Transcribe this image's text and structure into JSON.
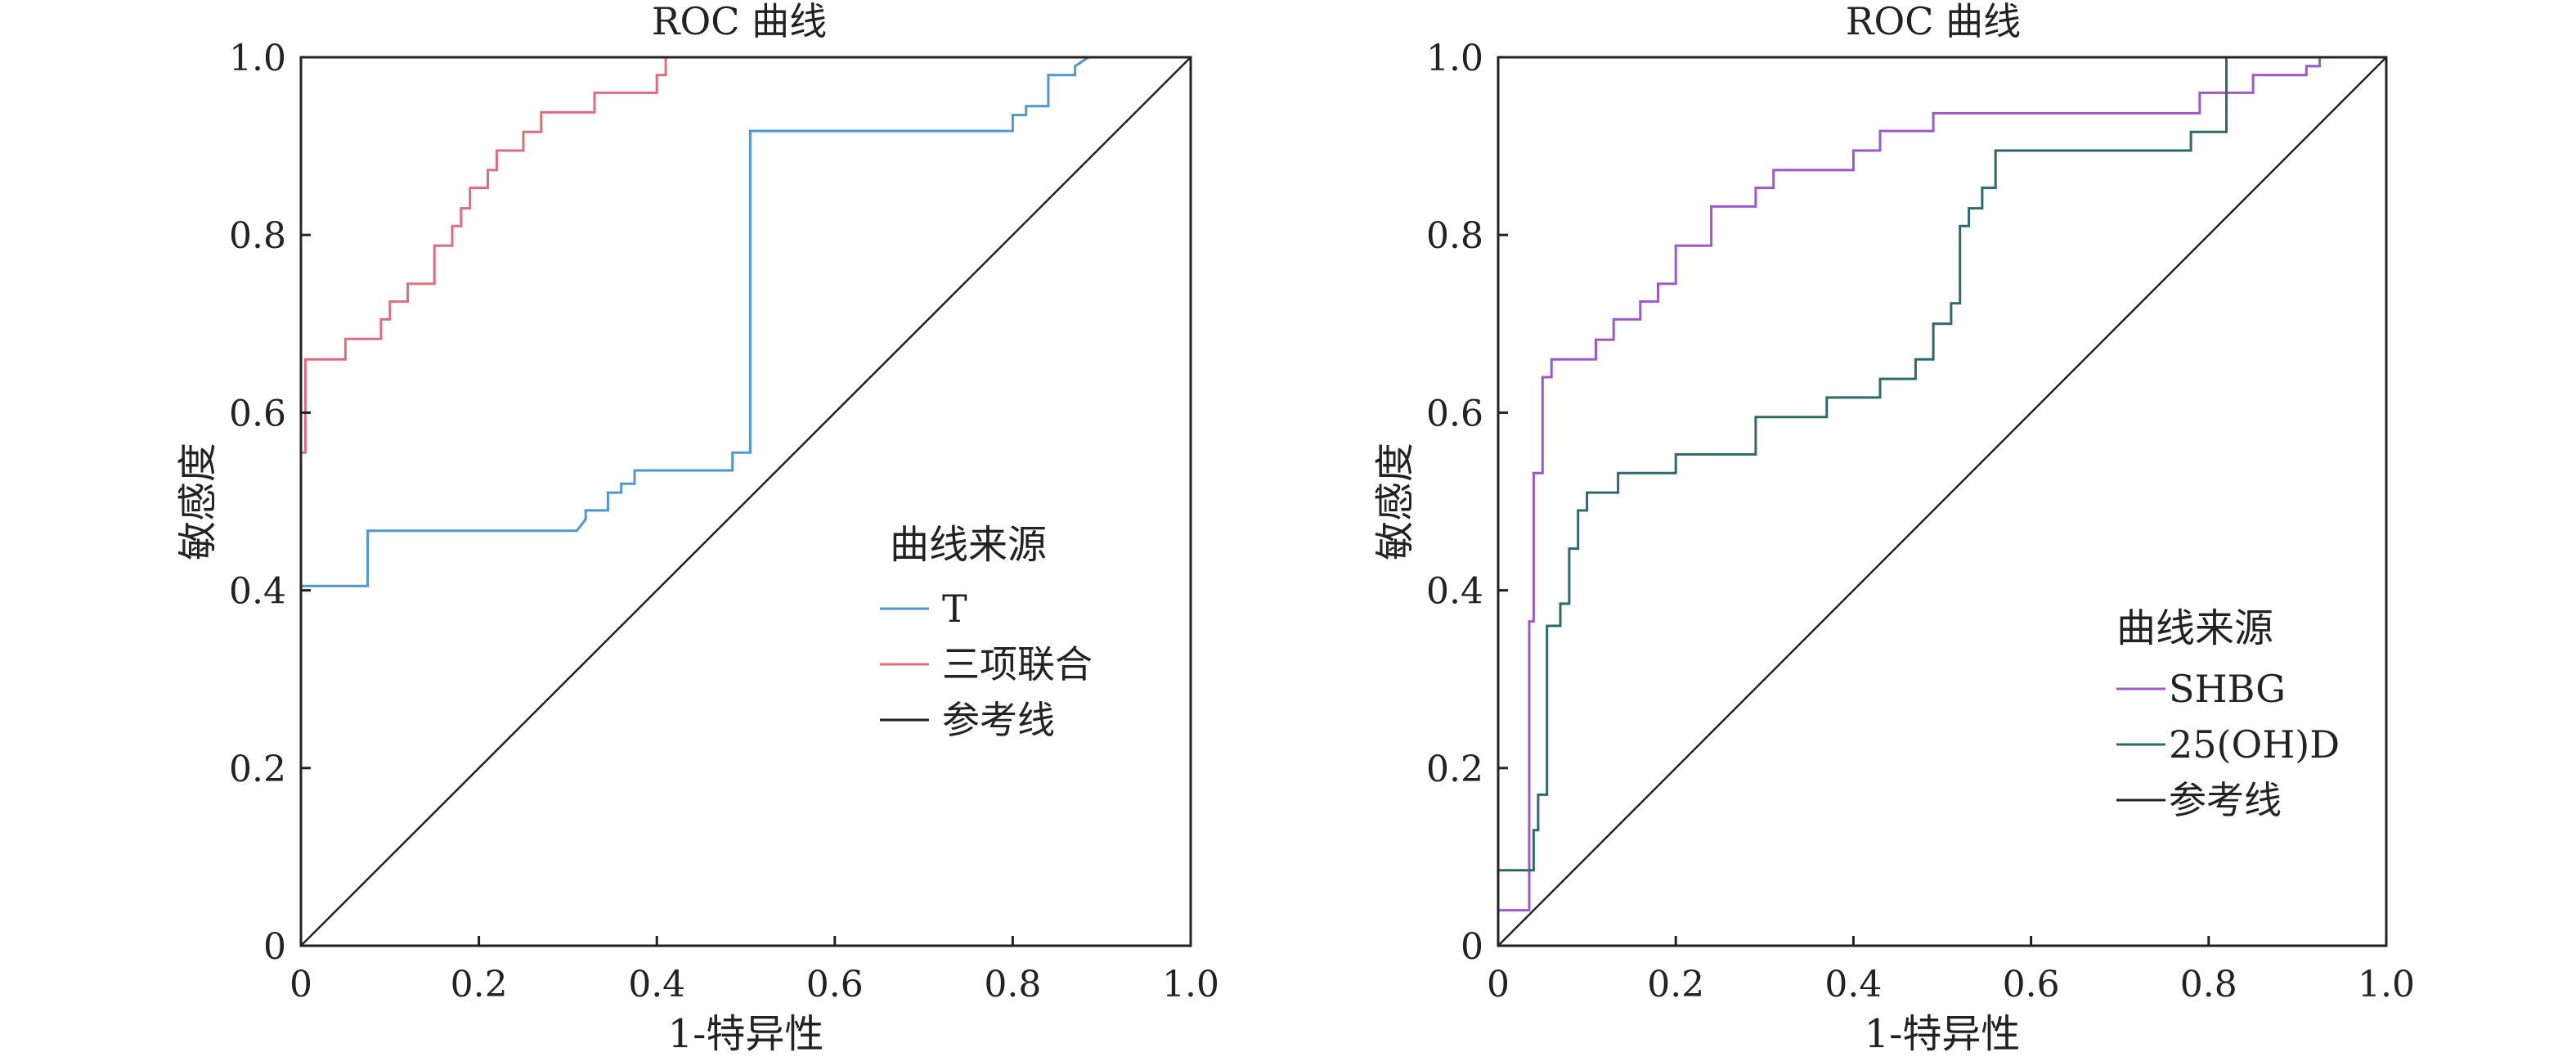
{
  "chart_data": [
    {
      "type": "line",
      "title": "ROC 曲线",
      "xlabel": "1-特异性",
      "ylabel": "敏感度",
      "xlim": [
        0,
        1
      ],
      "ylim": [
        0,
        1
      ],
      "xticks": [
        "0",
        "0.2",
        "0.4",
        "0.6",
        "0.8",
        "1.0"
      ],
      "yticks": [
        "0",
        "0.2",
        "0.4",
        "0.6",
        "0.8",
        "1.0"
      ],
      "grid": false,
      "legend": {
        "title": "曲线来源",
        "placement": "center-right",
        "entries": [
          "T",
          "三项联合",
          "参考线"
        ]
      },
      "series": [
        {
          "name": "T",
          "color": "#4f97cf",
          "x": [
            0,
            0,
            0.075,
            0.075,
            0.31,
            0.32,
            0.32,
            0.345,
            0.345,
            0.36,
            0.36,
            0.375,
            0.375,
            0.485,
            0.485,
            0.505,
            0.505,
            0.8,
            0.8,
            0.815,
            0.815,
            0.84,
            0.84,
            0.87,
            0.87,
            0.885
          ],
          "y": [
            0,
            0.405,
            0.405,
            0.467,
            0.467,
            0.48,
            0.49,
            0.49,
            0.51,
            0.51,
            0.52,
            0.52,
            0.535,
            0.535,
            0.555,
            0.555,
            0.917,
            0.917,
            0.935,
            0.935,
            0.945,
            0.945,
            0.98,
            0.98,
            0.99,
            1.0
          ]
        },
        {
          "name": "三项联合",
          "color": "#e06a7e",
          "x": [
            0,
            0,
            0.005,
            0.005,
            0.05,
            0.05,
            0.09,
            0.09,
            0.1,
            0.1,
            0.12,
            0.12,
            0.15,
            0.15,
            0.17,
            0.17,
            0.18,
            0.18,
            0.19,
            0.19,
            0.21,
            0.21,
            0.22,
            0.22,
            0.25,
            0.25,
            0.27,
            0.27,
            0.33,
            0.33,
            0.4,
            0.4,
            0.41,
            0.41
          ],
          "y": [
            0,
            0.555,
            0.555,
            0.66,
            0.66,
            0.683,
            0.683,
            0.705,
            0.705,
            0.725,
            0.725,
            0.745,
            0.745,
            0.788,
            0.788,
            0.81,
            0.81,
            0.83,
            0.83,
            0.853,
            0.853,
            0.873,
            0.873,
            0.895,
            0.895,
            0.916,
            0.916,
            0.938,
            0.938,
            0.96,
            0.96,
            0.98,
            0.98,
            1.0
          ]
        },
        {
          "name": "参考线",
          "color": "#222222",
          "x": [
            0,
            1
          ],
          "y": [
            0,
            1
          ]
        }
      ]
    },
    {
      "type": "line",
      "title": "ROC 曲线",
      "xlabel": "1-特异性",
      "ylabel": "敏感度",
      "xlim": [
        0,
        1
      ],
      "ylim": [
        0,
        1
      ],
      "xticks": [
        "0",
        "0.2",
        "0.4",
        "0.6",
        "0.8",
        "1.0"
      ],
      "yticks": [
        "0",
        "0.2",
        "0.4",
        "0.6",
        "0.8",
        "1.0"
      ],
      "grid": false,
      "legend": {
        "title": "曲线来源",
        "placement": "lower-right",
        "entries": [
          "SHBG",
          "25(OH)D",
          "参考线"
        ]
      },
      "series": [
        {
          "name": "SHBG",
          "color": "#9b59c9",
          "x": [
            0,
            0,
            0.035,
            0.035,
            0.04,
            0.04,
            0.05,
            0.05,
            0.06,
            0.06,
            0.11,
            0.11,
            0.13,
            0.13,
            0.16,
            0.16,
            0.18,
            0.18,
            0.2,
            0.2,
            0.24,
            0.24,
            0.29,
            0.29,
            0.31,
            0.31,
            0.4,
            0.4,
            0.43,
            0.43,
            0.49,
            0.49,
            0.79,
            0.79,
            0.85,
            0.85,
            0.91,
            0.91,
            0.925,
            0.925,
            0.935
          ],
          "y": [
            0,
            0.04,
            0.04,
            0.365,
            0.365,
            0.532,
            0.532,
            0.64,
            0.64,
            0.66,
            0.66,
            0.682,
            0.682,
            0.705,
            0.705,
            0.725,
            0.725,
            0.745,
            0.745,
            0.788,
            0.788,
            0.832,
            0.832,
            0.853,
            0.853,
            0.873,
            0.873,
            0.895,
            0.895,
            0.917,
            0.917,
            0.937,
            0.937,
            0.96,
            0.96,
            0.98,
            0.98,
            0.99,
            0.99,
            1.0,
            1.0
          ]
        },
        {
          "name": "25(OH)D",
          "color": "#2e6a6a",
          "x": [
            0,
            0,
            0.04,
            0.04,
            0.045,
            0.045,
            0.055,
            0.055,
            0.07,
            0.07,
            0.08,
            0.08,
            0.09,
            0.09,
            0.1,
            0.1,
            0.135,
            0.135,
            0.2,
            0.2,
            0.29,
            0.29,
            0.37,
            0.37,
            0.43,
            0.43,
            0.47,
            0.47,
            0.49,
            0.49,
            0.51,
            0.51,
            0.52,
            0.52,
            0.53,
            0.53,
            0.545,
            0.545,
            0.56,
            0.56,
            0.78,
            0.78,
            0.82,
            0.82
          ],
          "y": [
            0,
            0.085,
            0.085,
            0.13,
            0.13,
            0.17,
            0.17,
            0.36,
            0.36,
            0.385,
            0.385,
            0.447,
            0.447,
            0.49,
            0.49,
            0.51,
            0.51,
            0.532,
            0.532,
            0.553,
            0.553,
            0.595,
            0.595,
            0.617,
            0.617,
            0.638,
            0.638,
            0.66,
            0.66,
            0.7,
            0.7,
            0.723,
            0.723,
            0.81,
            0.81,
            0.83,
            0.83,
            0.853,
            0.853,
            0.895,
            0.895,
            0.916,
            0.916,
            1.0
          ]
        },
        {
          "name": "参考线",
          "color": "#222222",
          "x": [
            0,
            1
          ],
          "y": [
            0,
            1
          ]
        }
      ]
    }
  ]
}
